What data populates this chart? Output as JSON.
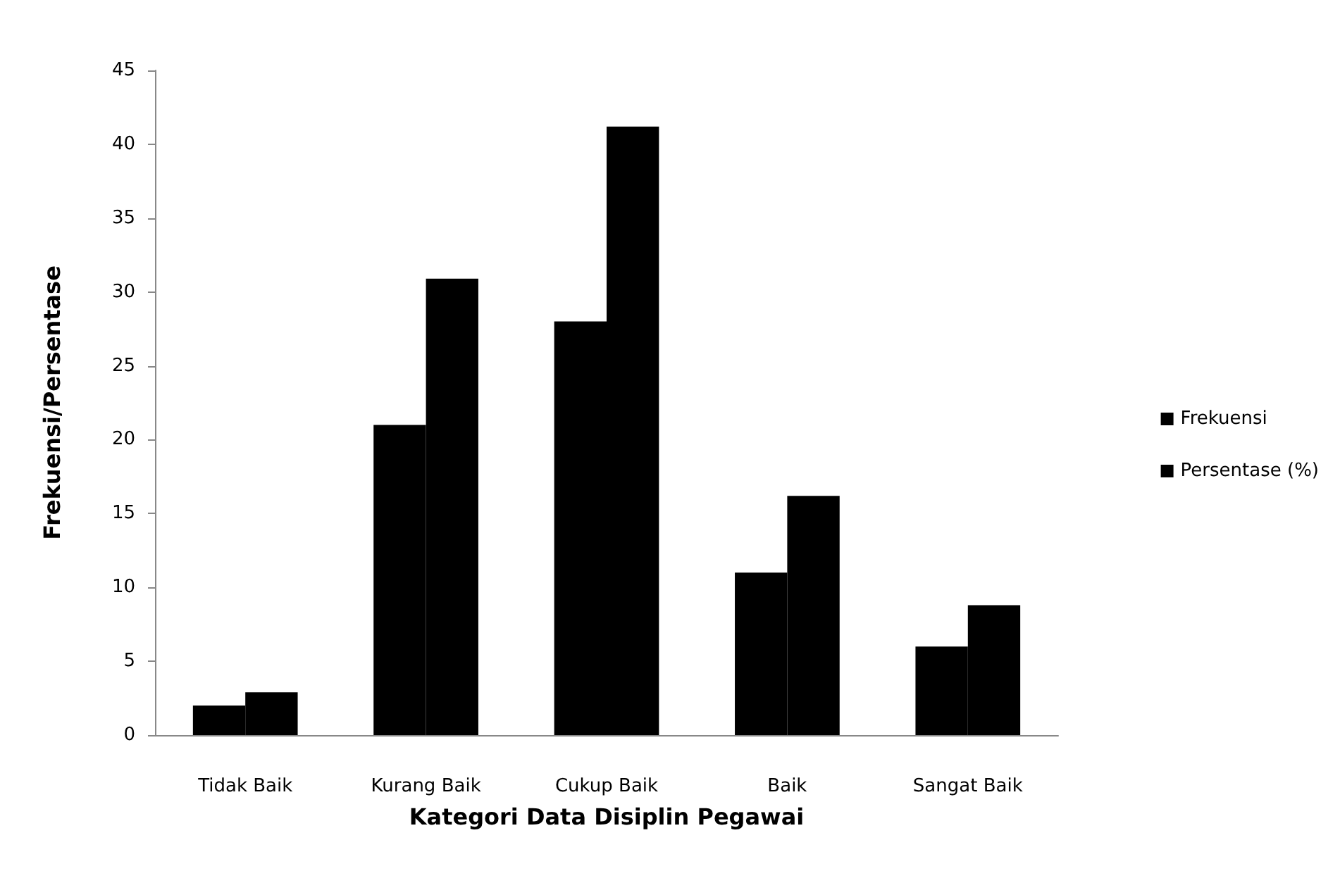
{
  "chart_data": {
    "type": "bar",
    "xlabel": "Kategori Data Disiplin Pegawai",
    "ylabel": "Frekuensi/Persentase",
    "categories": [
      "Tidak Baik",
      "Kurang Baik",
      "Cukup Baik",
      "Baik",
      "Sangat Baik"
    ],
    "series": [
      {
        "name": "Frekuensi",
        "color": "#000000",
        "values": [
          2,
          21,
          28,
          11,
          6
        ]
      },
      {
        "name": "Persentase (%)",
        "color": "#000000",
        "values": [
          2.9,
          30.9,
          41.2,
          16.2,
          8.8
        ]
      }
    ],
    "ylim": [
      0,
      45
    ],
    "yticks": [
      0,
      5,
      10,
      15,
      20,
      25,
      30,
      35,
      40,
      45
    ],
    "grid": false,
    "legend": "right"
  }
}
